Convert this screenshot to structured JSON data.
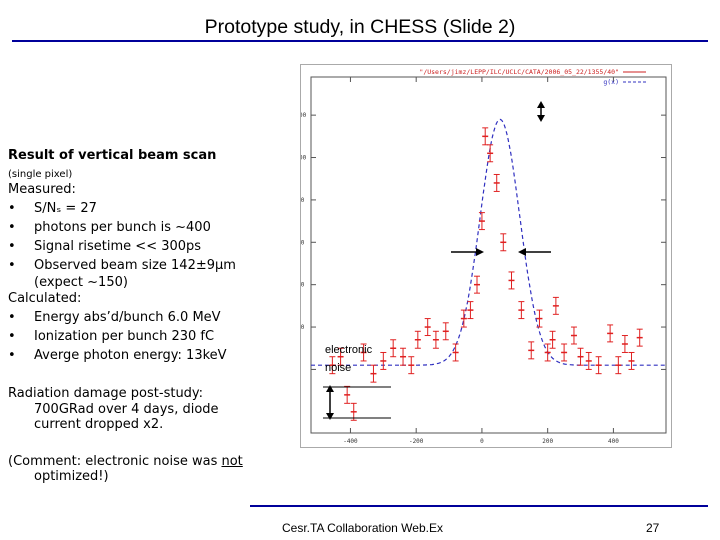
{
  "slide": {
    "title": "Prototype study, in CHESS (Slide 2)",
    "footer": "Cesr.TA Collaboration Web.Ex",
    "page_number": "27"
  },
  "left_text": {
    "heading": "Result of vertical beam scan",
    "subheading": "(single pixel)",
    "measured_label": "Measured:",
    "measured_items": [
      "S/Nₛ = 27",
      "photons per bunch is  ~400",
      "Signal risetime << 300ps",
      "Observed beam size 142±9µm"
    ],
    "measured_note": "(expect ~150)",
    "calculated_label": "Calculated:",
    "calculated_items": [
      "Energy abs’d/bunch 6.0 MeV",
      "Ionization per bunch 230 fC",
      "Averge photon energy: 13keV"
    ],
    "radiation_line1": "Radiation damage post-study:",
    "radiation_line2": "700GRad over 4 days,  diode",
    "radiation_line3": "current dropped x2.",
    "comment_prefix": "(Comment: electronic noise was ",
    "comment_underlined": " not",
    "comment_line2": "optimized!)",
    "bullet_char": "•"
  },
  "plot": {
    "legend_line1": "\"/Users/jimz/LEPP/ILC/UCLC/CATA/2006_05_22/1355/40\"",
    "legend_line2": "g(x)",
    "annotation_line1": "electronic",
    "annotation_line2": "noise",
    "data_color": "#e02020",
    "fit_color": "#3030c0"
  },
  "chart_data": {
    "type": "scatter",
    "title": "",
    "xlabel": "",
    "ylabel": "",
    "xlim": [
      -520,
      560
    ],
    "ylim": [
      -300,
      1380
    ],
    "x_ticks": [
      -400,
      -200,
      0,
      200,
      400
    ],
    "x_tick_labels": [
      "-400",
      "-200",
      "0",
      "200",
      "400"
    ],
    "y_ticks": [
      0,
      200,
      400,
      600,
      800,
      1000,
      1200
    ],
    "y_tick_labels": [
      "0",
      "200",
      "400",
      "600",
      "800",
      "1000",
      "1200"
    ],
    "grid": false,
    "legend": "top-right",
    "series": [
      {
        "name": "\"/Users/jimz/LEPP/ILC/UCLC/CATA/2006_05_22/1355/40\"",
        "kind": "points",
        "x": [
          -455,
          -430,
          -410,
          -390,
          -360,
          -330,
          -300,
          -270,
          -240,
          -215,
          -195,
          -165,
          -140,
          -110,
          -80,
          -55,
          -35,
          -15,
          0,
          10,
          25,
          45,
          65,
          90,
          120,
          150,
          175,
          200,
          215,
          225,
          250,
          280,
          300,
          325,
          355,
          390,
          415,
          435,
          455,
          480
        ],
        "y": [
          20,
          60,
          -120,
          -200,
          80,
          -20,
          40,
          100,
          60,
          20,
          140,
          200,
          140,
          180,
          80,
          240,
          280,
          400,
          700,
          1100,
          1020,
          880,
          600,
          420,
          280,
          90,
          240,
          80,
          140,
          300,
          80,
          160,
          60,
          40,
          20,
          170,
          20,
          120,
          40,
          150
        ],
        "err": [
          40,
          40,
          40,
          40,
          40,
          40,
          40,
          40,
          40,
          40,
          40,
          40,
          40,
          40,
          40,
          40,
          40,
          40,
          40,
          40,
          40,
          40,
          40,
          40,
          40,
          40,
          40,
          40,
          40,
          40,
          40,
          40,
          40,
          40,
          40,
          40,
          40,
          40,
          40,
          40
        ]
      },
      {
        "name": "g(x)",
        "kind": "gaussian",
        "mu": 55,
        "sigma": 60,
        "amplitude": 1160,
        "baseline": 20
      }
    ]
  }
}
